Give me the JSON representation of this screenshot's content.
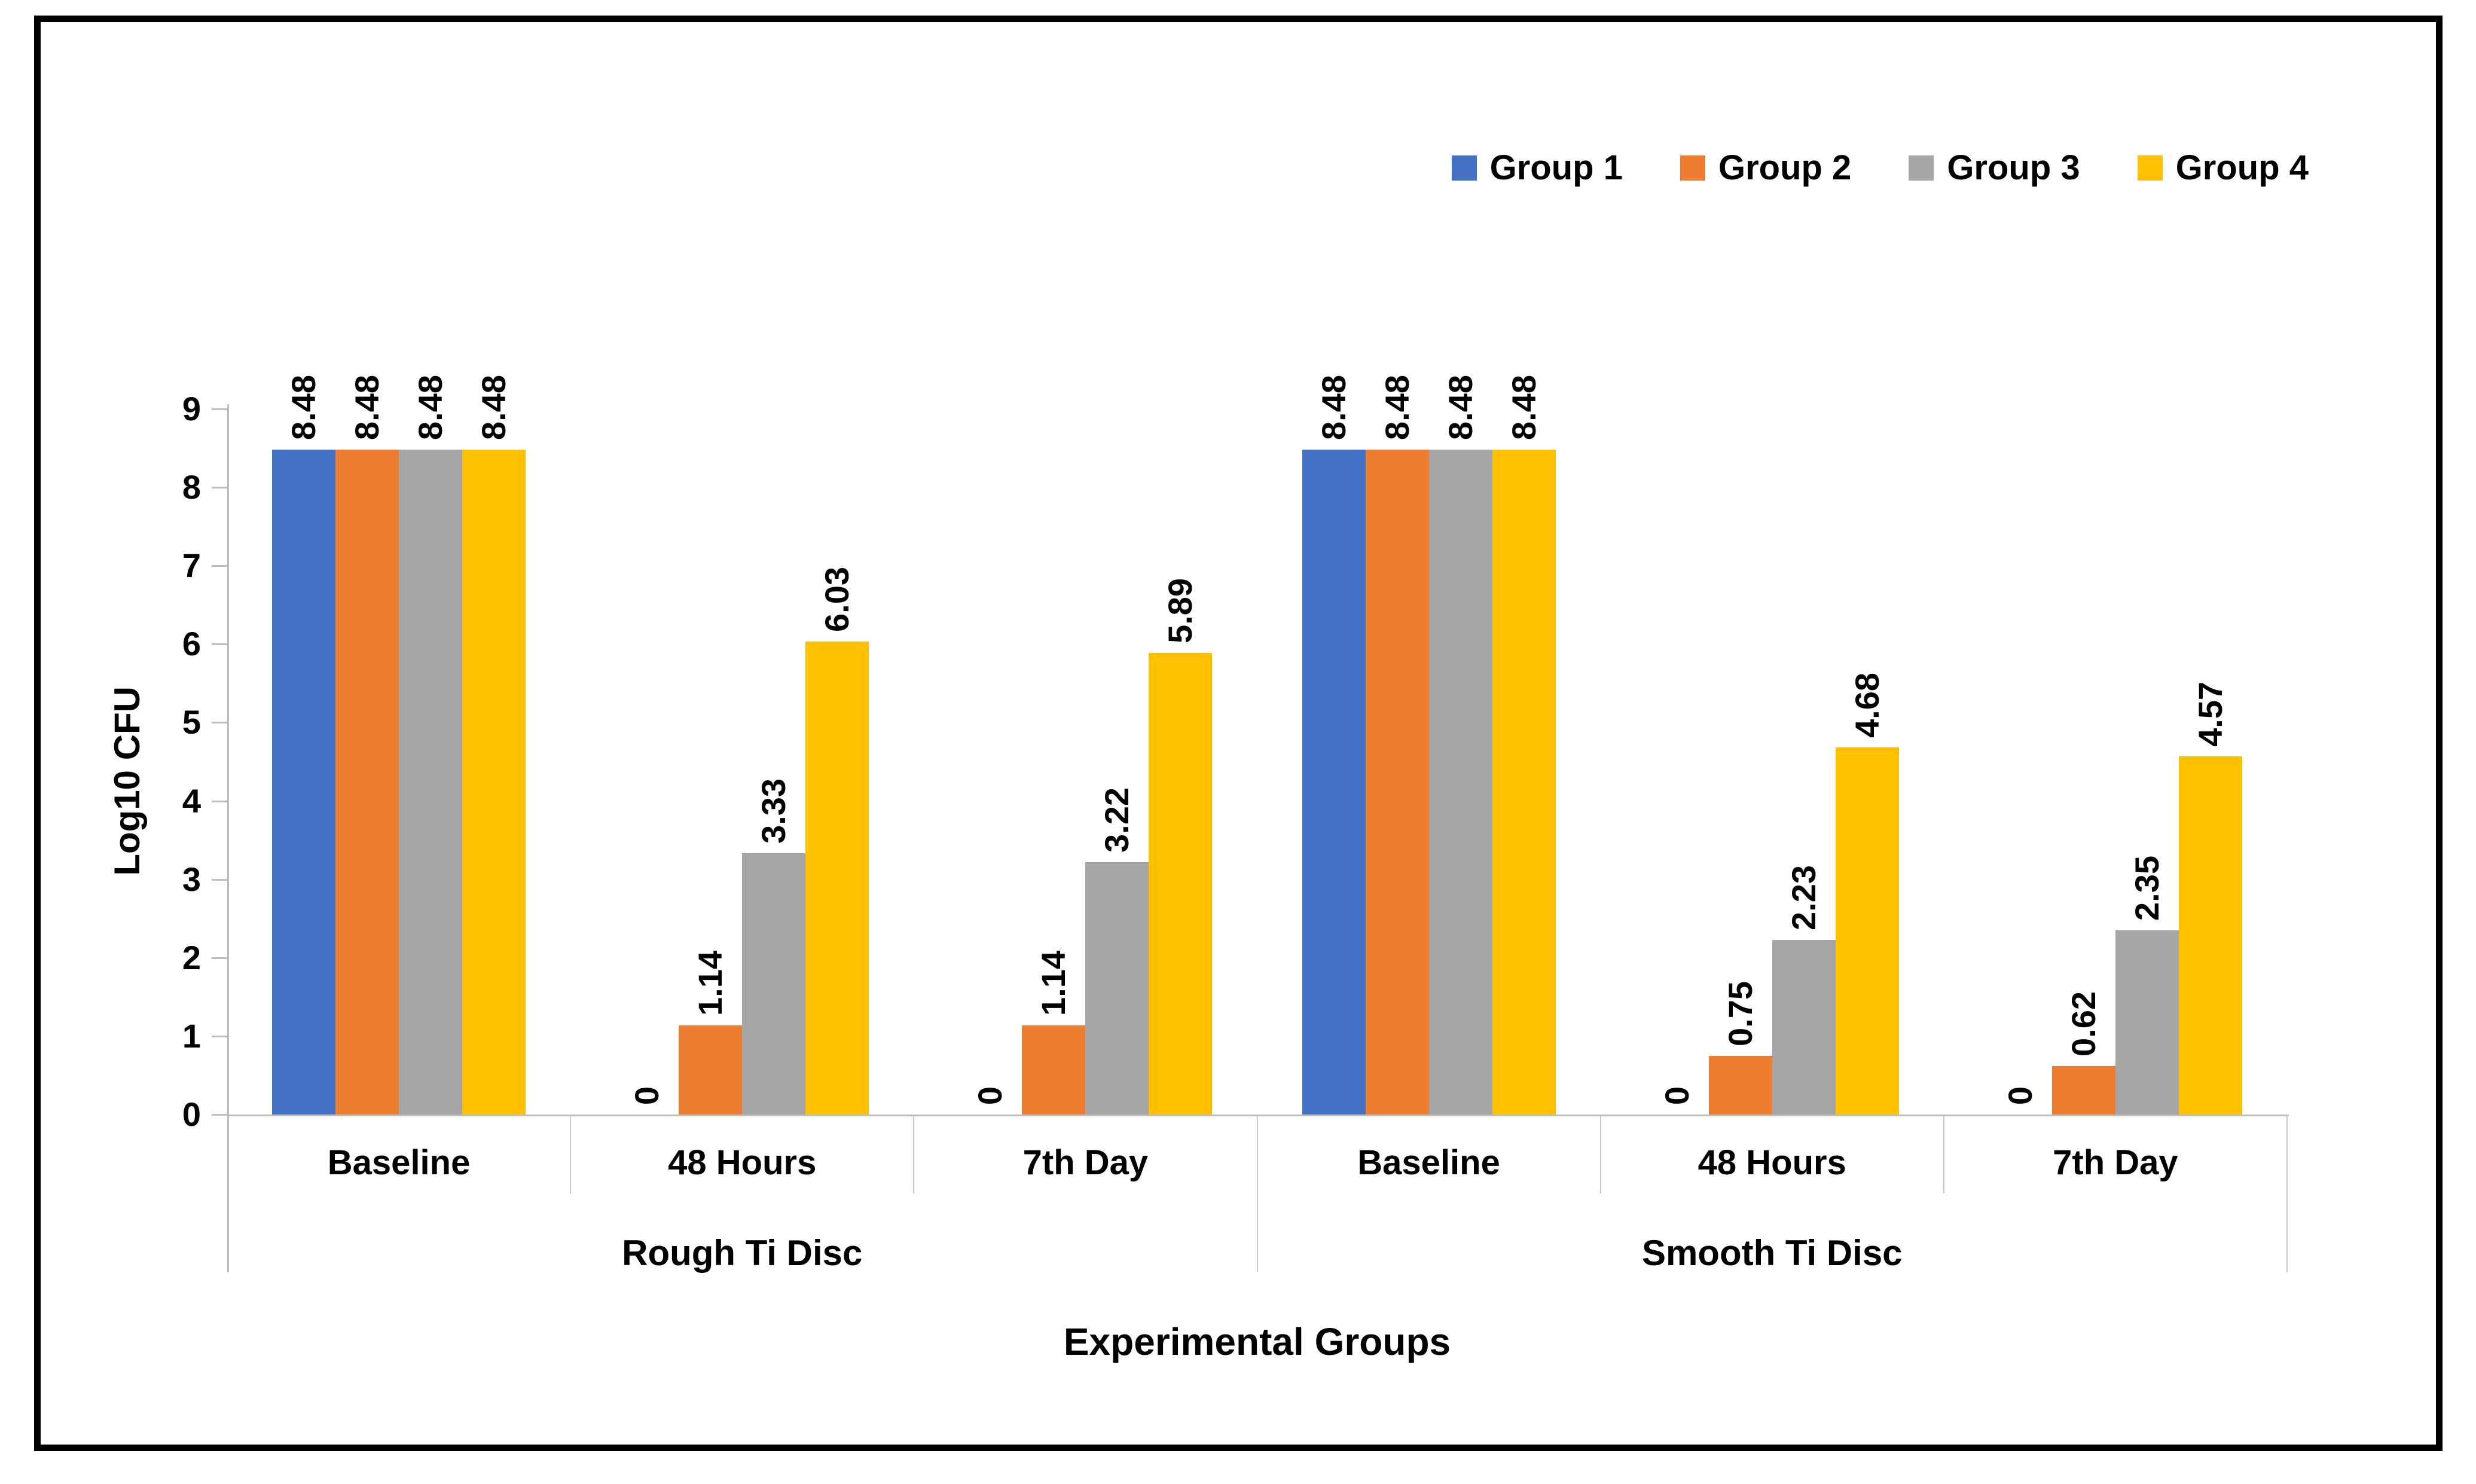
{
  "figure": {
    "border_color": "#000000",
    "background_color": "#ffffff",
    "axis_color": "#BFBFBF",
    "divider_color": "#C8C8C8",
    "text_color": "#000000"
  },
  "chart_data": {
    "type": "bar",
    "title": "",
    "xlabel": "Experimental Groups",
    "ylabel": "Log10 CFU",
    "ylim": [
      0,
      9
    ],
    "ytick_step": 1,
    "yticks": [
      0,
      1,
      2,
      3,
      4,
      5,
      6,
      7,
      8,
      9
    ],
    "grid": false,
    "legend_position": "top-right",
    "data_label_rotation": 90,
    "group_labels": [
      "Rough Ti Disc",
      "Smooth Ti Disc"
    ],
    "categories": [
      "Baseline",
      "48 Hours",
      "7th Day",
      "Baseline",
      "48 Hours",
      "7th Day"
    ],
    "series": [
      {
        "name": "Group 1",
        "color": "#4472C4",
        "values": [
          8.48,
          0,
          0,
          8.48,
          0,
          0
        ]
      },
      {
        "name": "Group 2",
        "color": "#ED7D31",
        "values": [
          8.48,
          1.14,
          1.14,
          8.48,
          0.75,
          0.62
        ]
      },
      {
        "name": "Group 3",
        "color": "#A5A5A5",
        "values": [
          8.48,
          3.33,
          3.22,
          8.48,
          2.23,
          2.35
        ]
      },
      {
        "name": "Group 4",
        "color": "#FFC000",
        "values": [
          8.48,
          6.03,
          5.89,
          8.48,
          4.68,
          4.57
        ]
      }
    ],
    "data_labels": [
      [
        "8.48",
        "0",
        "0",
        "8.48",
        "0",
        "0"
      ],
      [
        "8.48",
        "1.14",
        "1.14",
        "8.48",
        "0.75",
        "0.62"
      ],
      [
        "8.48",
        "3.33",
        "3.22",
        "8.48",
        "2.23",
        "2.35"
      ],
      [
        "8.48",
        "6.03",
        "5.89",
        "8.48",
        "4.68",
        "4.57"
      ]
    ]
  }
}
